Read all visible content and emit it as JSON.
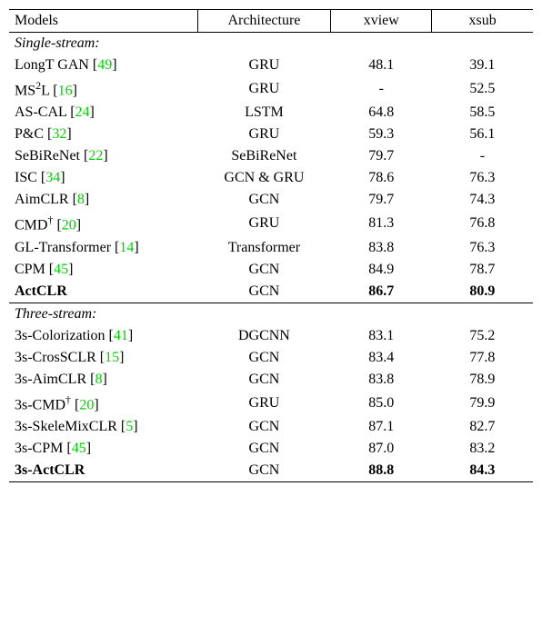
{
  "headers": {
    "models": "Models",
    "arch": "Architecture",
    "xview": "xview",
    "xsub": "xsub"
  },
  "section1": "Single-stream:",
  "section2": "Three-stream:",
  "rows1": [
    {
      "name_a": "LongT GAN [",
      "cite": "49",
      "name_b": "]",
      "arch": "GRU",
      "xview": "48.1",
      "xsub": "39.1",
      "bold": false,
      "sup": ""
    },
    {
      "name_a": "MS",
      "sup": "2",
      "name_mid": "L [",
      "cite": "16",
      "name_b": "]",
      "arch": "GRU",
      "xview": "-",
      "xsub": "52.5",
      "bold": false
    },
    {
      "name_a": "AS-CAL [",
      "cite": "24",
      "name_b": "]",
      "arch": "LSTM",
      "xview": "64.8",
      "xsub": "58.5",
      "bold": false,
      "sup": ""
    },
    {
      "name_a": "P&C [",
      "cite": "32",
      "name_b": "]",
      "arch": "GRU",
      "xview": "59.3",
      "xsub": "56.1",
      "bold": false,
      "sup": ""
    },
    {
      "name_a": "SeBiReNet [",
      "cite": "22",
      "name_b": "]",
      "arch": "SeBiReNet",
      "xview": "79.7",
      "xsub": "-",
      "bold": false,
      "sup": ""
    },
    {
      "name_a": "ISC [",
      "cite": "34",
      "name_b": "]",
      "arch": "GCN & GRU",
      "xview": "78.6",
      "xsub": "76.3",
      "bold": false,
      "sup": ""
    },
    {
      "name_a": "AimCLR [",
      "cite": "8",
      "name_b": "]",
      "arch": "GCN",
      "xview": "79.7",
      "xsub": "74.3",
      "bold": false,
      "sup": ""
    },
    {
      "name_a": "CMD",
      "dag": "†",
      "name_mid2": " [",
      "cite": "20",
      "name_b": "]",
      "arch": "GRU",
      "xview": "81.3",
      "xsub": "76.8",
      "bold": false,
      "sup": ""
    },
    {
      "name_a": "GL-Transformer [",
      "cite": "14",
      "name_b": "]",
      "arch": "Transformer",
      "xview": "83.8",
      "xsub": "76.3",
      "bold": false,
      "sup": ""
    },
    {
      "name_a": "CPM [",
      "cite": "45",
      "name_b": "]",
      "arch": "GCN",
      "xview": "84.9",
      "xsub": "78.7",
      "bold": false,
      "sup": ""
    },
    {
      "name_a": "ActCLR",
      "cite": "",
      "name_b": "",
      "arch": "GCN",
      "xview": "86.7",
      "xsub": "80.9",
      "bold": true,
      "sup": ""
    }
  ],
  "rows2": [
    {
      "name_a": "3s-Colorization [",
      "cite": "41",
      "name_b": "]",
      "arch": "DGCNN",
      "xview": "83.1",
      "xsub": "75.2",
      "bold": false
    },
    {
      "name_a": "3s-CrosSCLR [",
      "cite": "15",
      "name_b": "]",
      "arch": "GCN",
      "xview": "83.4",
      "xsub": "77.8",
      "bold": false
    },
    {
      "name_a": "3s-AimCLR [",
      "cite": "8",
      "name_b": "]",
      "arch": "GCN",
      "xview": "83.8",
      "xsub": "78.9",
      "bold": false
    },
    {
      "name_a": "3s-CMD",
      "dag": "†",
      "name_mid2": " [",
      "cite": "20",
      "name_b": "]",
      "arch": "GRU",
      "xview": "85.0",
      "xsub": "79.9",
      "bold": false
    },
    {
      "name_a": "3s-SkeleMixCLR [",
      "cite": "5",
      "name_b": "]",
      "arch": "GCN",
      "xview": "87.1",
      "xsub": "82.7",
      "bold": false
    },
    {
      "name_a": "3s-CPM [",
      "cite": "45",
      "name_b": "]",
      "arch": "GCN",
      "xview": "87.0",
      "xsub": "83.2",
      "bold": false
    },
    {
      "name_a": "3s-ActCLR",
      "cite": "",
      "name_b": "",
      "arch": "GCN",
      "xview": "88.8",
      "xsub": "84.3",
      "bold": true
    }
  ],
  "style": {
    "cite_color": "#00d000",
    "font_family": "Times New Roman",
    "font_size_pt": 16,
    "border_color": "#000000",
    "background": "#ffffff"
  }
}
